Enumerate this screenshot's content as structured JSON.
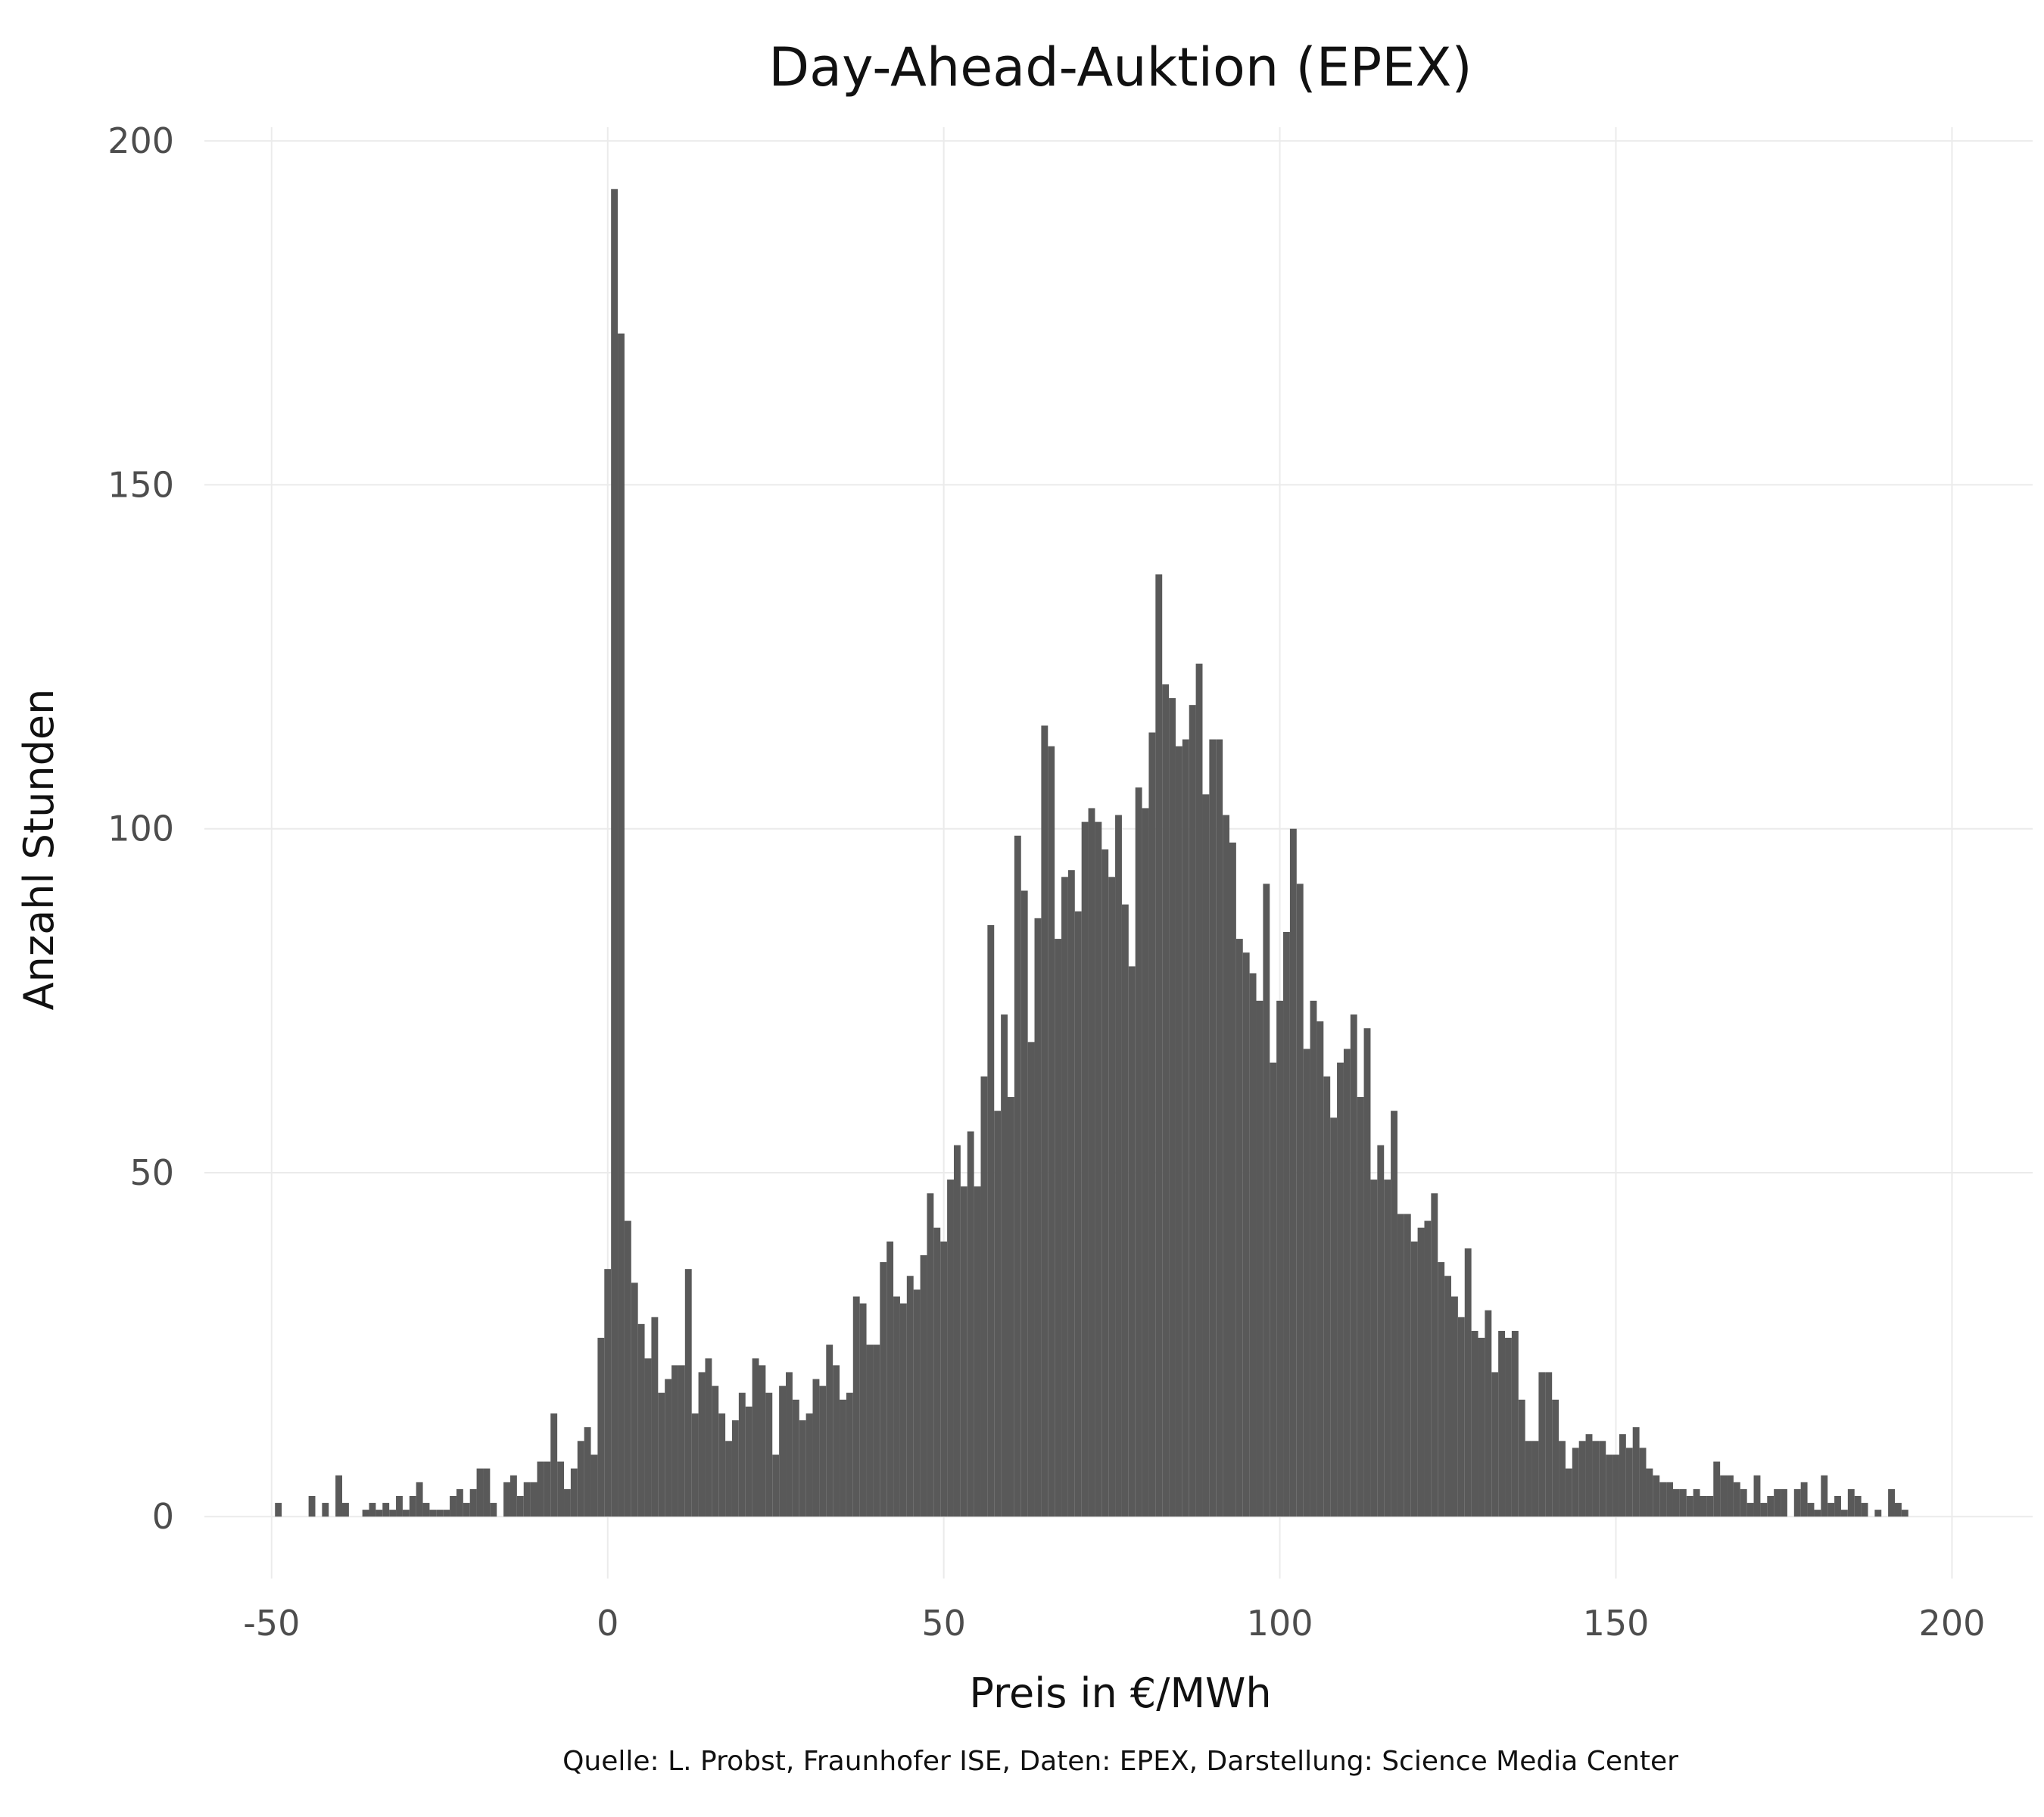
{
  "chart_data": {
    "type": "bar",
    "title": "Day-Ahead-Auktion (EPEX)",
    "xlabel": "Preis in €/MWh",
    "ylabel": "Anzahl Stunden",
    "caption": "Quelle: L. Probst, Fraunhofer ISE, Daten: EPEX, Darstellung: Science Media Center",
    "xlim": [
      -60,
      212
    ],
    "ylim": [
      -9,
      202
    ],
    "x_ticks": [
      -50,
      0,
      50,
      100,
      150,
      200
    ],
    "x_tick_labels": [
      "-50",
      "0",
      "50",
      "100",
      "150",
      "200"
    ],
    "y_ticks": [
      0,
      50,
      100,
      150,
      200
    ],
    "y_tick_labels": [
      "0",
      "50",
      "100",
      "150",
      "200"
    ],
    "grid": true,
    "bar_color": "#595959",
    "bin_width": 1,
    "bin_centers_start": -49,
    "counts": [
      2,
      0,
      0,
      0,
      0,
      3,
      0,
      2,
      0,
      6,
      2,
      0,
      0,
      1,
      2,
      1,
      2,
      1,
      3,
      1,
      3,
      5,
      2,
      1,
      1,
      1,
      3,
      4,
      2,
      4,
      7,
      7,
      2,
      0,
      5,
      6,
      3,
      5,
      5,
      8,
      8,
      15,
      8,
      4,
      7,
      11,
      13,
      9,
      26,
      36,
      193,
      172,
      43,
      34,
      28,
      23,
      29,
      18,
      20,
      22,
      22,
      36,
      15,
      21,
      23,
      19,
      15,
      11,
      14,
      18,
      16,
      23,
      22,
      18,
      9,
      19,
      21,
      17,
      14,
      15,
      20,
      19,
      25,
      22,
      17,
      18,
      32,
      31,
      25,
      25,
      37,
      40,
      32,
      31,
      35,
      33,
      38,
      47,
      42,
      40,
      49,
      54,
      48,
      56,
      48,
      64,
      86,
      59,
      73,
      61,
      99,
      91,
      69,
      87,
      115,
      112,
      84,
      93,
      94,
      88,
      101,
      103,
      101,
      97,
      93,
      102,
      89,
      80,
      106,
      103,
      114,
      137,
      121,
      119,
      112,
      113,
      118,
      124,
      105,
      113,
      113,
      102,
      98,
      84,
      82,
      79,
      75,
      92,
      66,
      75,
      85,
      100,
      92,
      68,
      75,
      72,
      64,
      58,
      66,
      68,
      73,
      61,
      71,
      49,
      54,
      49,
      59,
      44,
      44,
      40,
      42,
      43,
      47,
      37,
      35,
      32,
      29,
      39,
      27,
      26,
      30,
      21,
      27,
      26,
      27,
      17,
      11,
      11,
      21,
      21,
      17,
      11,
      7,
      10,
      11,
      12,
      11,
      11,
      9,
      9,
      12,
      10,
      13,
      10,
      7,
      6,
      5,
      5,
      4,
      4,
      3,
      4,
      3,
      3,
      8,
      6,
      6,
      5,
      4,
      2,
      6,
      2,
      3,
      4,
      4,
      0,
      4,
      5,
      2,
      1,
      6,
      2,
      3,
      1,
      4,
      3,
      2,
      0,
      1,
      0,
      4,
      2,
      1
    ]
  }
}
